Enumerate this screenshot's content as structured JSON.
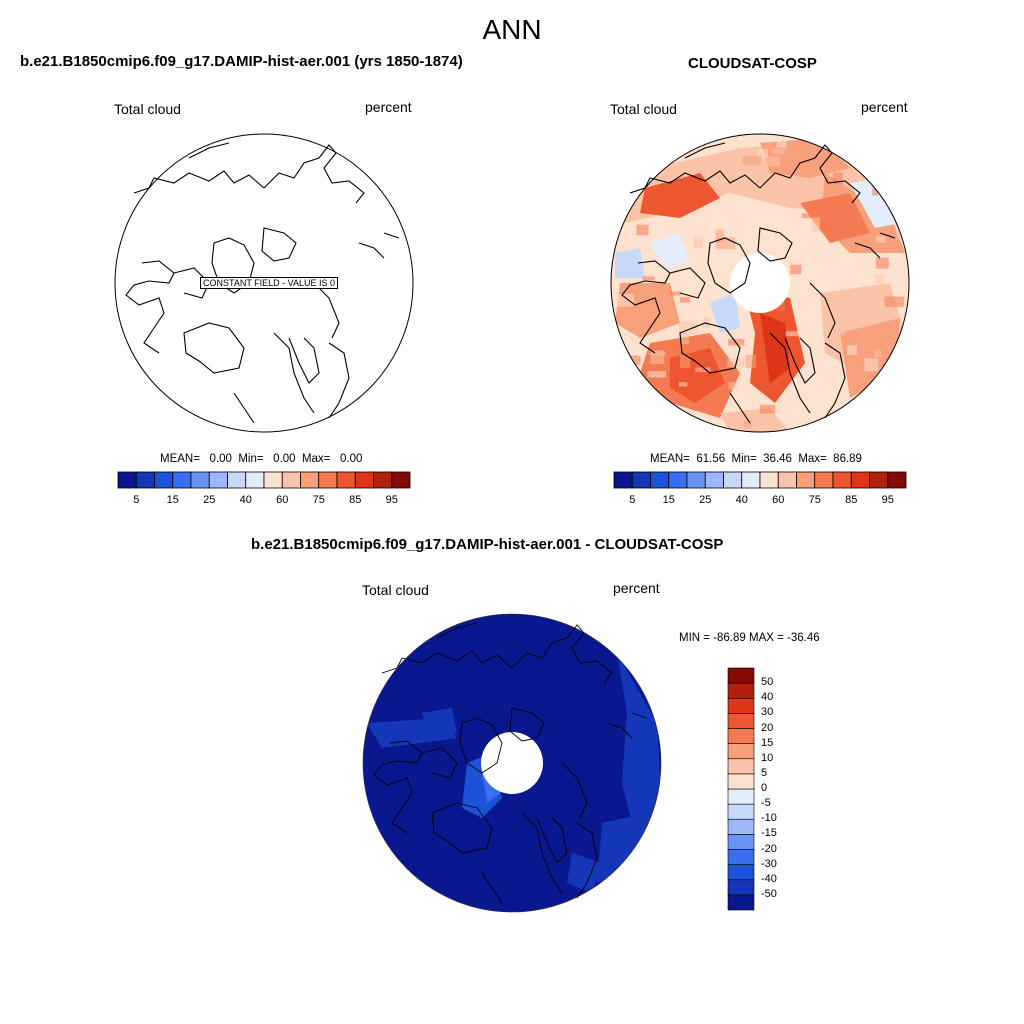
{
  "figure": {
    "title": "ANN"
  },
  "panels": [
    {
      "id": "model",
      "title": "b.e21.B1850cmip6.f09_g17.DAMIP-hist-aer.001 (yrs 1850-1874)",
      "variable": "Total cloud",
      "units": "percent",
      "annotation": "CONSTANT FIELD - VALUE IS 0",
      "stats": {
        "mean_label": "MEAN=",
        "mean": "0.00",
        "min_label": "Min=",
        "min": "0.00",
        "max_label": "Max=",
        "max": "0.00"
      },
      "colorbar_labels": [
        "5",
        "15",
        "25",
        "40",
        "60",
        "75",
        "85",
        "95"
      ]
    },
    {
      "id": "obs",
      "title": "CLOUDSAT-COSP",
      "variable": "Total cloud",
      "units": "percent",
      "stats": {
        "mean_label": "MEAN=",
        "mean": "61.56",
        "min_label": "Min=",
        "min": "36.46",
        "max_label": "Max=",
        "max": "86.89"
      },
      "colorbar_labels": [
        "5",
        "15",
        "25",
        "40",
        "60",
        "75",
        "85",
        "95"
      ]
    },
    {
      "id": "diff",
      "title": "b.e21.B1850cmip6.f09_g17.DAMIP-hist-aer.001 - CLOUDSAT-COSP",
      "variable": "Total cloud",
      "units": "percent",
      "minmax": "MIN = -86.89 MAX = -36.46",
      "colorbar_labels": [
        "50",
        "40",
        "30",
        "20",
        "15",
        "10",
        "5",
        "0",
        "-5",
        "-10",
        "-15",
        "-20",
        "-30",
        "-40",
        "-50"
      ]
    }
  ],
  "chart_data": [
    {
      "type": "heatmap",
      "title": "Total cloud",
      "projection": "north polar stereographic",
      "units": "percent",
      "mean": 0.0,
      "min": 0.0,
      "max": 0.0,
      "levels": [
        5,
        10,
        15,
        20,
        25,
        30,
        40,
        50,
        60,
        65,
        70,
        75,
        80,
        85,
        90,
        95
      ],
      "colors": [
        "#0a1890",
        "#1436b8",
        "#1a52d8",
        "#3a6ef0",
        "#6a93f6",
        "#9cb8f8",
        "#c8d8f8",
        "#e4eefa",
        "#fde2d0",
        "#fbc4a8",
        "#f8a07c",
        "#f47a52",
        "#ee5632",
        "#de3418",
        "#b2200e",
        "#860a04"
      ]
    },
    {
      "type": "heatmap",
      "title": "Total cloud",
      "projection": "north polar stereographic",
      "units": "percent",
      "mean": 61.56,
      "min": 36.46,
      "max": 86.89,
      "levels": [
        5,
        10,
        15,
        20,
        25,
        30,
        40,
        50,
        60,
        65,
        70,
        75,
        80,
        85,
        90,
        95
      ],
      "colors": [
        "#0a1890",
        "#1436b8",
        "#1a52d8",
        "#3a6ef0",
        "#6a93f6",
        "#9cb8f8",
        "#c8d8f8",
        "#e4eefa",
        "#fde2d0",
        "#fbc4a8",
        "#f8a07c",
        "#f47a52",
        "#ee5632",
        "#de3418",
        "#b2200e",
        "#860a04"
      ]
    },
    {
      "type": "heatmap",
      "title": "Total cloud",
      "projection": "north polar stereographic",
      "units": "percent",
      "min": -86.89,
      "max": -36.46,
      "levels": [
        -50,
        -40,
        -30,
        -20,
        -15,
        -10,
        -5,
        0,
        5,
        10,
        15,
        20,
        30,
        40,
        50
      ],
      "colors": [
        "#0a1890",
        "#1436b8",
        "#1a52d8",
        "#3a6ef0",
        "#6a93f6",
        "#9cb8f8",
        "#c8d8f8",
        "#e4eefa",
        "#fde2d0",
        "#fbc4a8",
        "#f8a07c",
        "#f47a52",
        "#ee5632",
        "#de3418",
        "#b2200e",
        "#860a04"
      ]
    }
  ]
}
